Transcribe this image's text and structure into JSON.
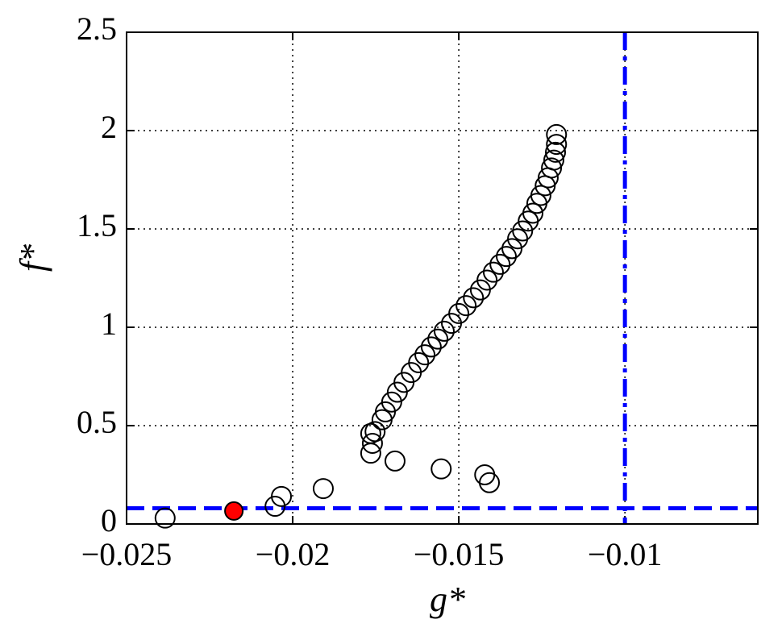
{
  "chart_data": {
    "type": "scatter",
    "x_label": "g*",
    "y_label": "f*",
    "xlim": [
      -0.025,
      -0.006
    ],
    "ylim": [
      0,
      2.5
    ],
    "xticks": [
      {
        "value": -0.025,
        "label": "−0.025"
      },
      {
        "value": -0.02,
        "label": "−0.02"
      },
      {
        "value": -0.015,
        "label": "−0.015"
      },
      {
        "value": -0.01,
        "label": "−0.01"
      }
    ],
    "yticks": [
      0,
      0.5,
      1,
      1.5,
      2,
      2.5
    ],
    "grid": true,
    "reference_lines": {
      "x": -0.01,
      "y": 0.08,
      "color": "#0000ff"
    },
    "series": [
      {
        "color": "#000000",
        "filled": false,
        "x": [
          -0.02384,
          -0.02053,
          -0.02034,
          -0.01908,
          -0.01765,
          -0.0176,
          -0.01765,
          -0.01692,
          -0.01553,
          -0.01422,
          -0.01408,
          -0.01752,
          -0.01731,
          -0.01721,
          -0.01702,
          -0.01685,
          -0.01665,
          -0.01643,
          -0.01621,
          -0.01602,
          -0.01583,
          -0.01563,
          -0.01544,
          -0.01522,
          -0.015,
          -0.01478,
          -0.01456,
          -0.01435,
          -0.01415,
          -0.01396,
          -0.01376,
          -0.01357,
          -0.0134,
          -0.01323,
          -0.01308,
          -0.01291,
          -0.01277,
          -0.01265,
          -0.01253,
          -0.0124,
          -0.01231,
          -0.01221,
          -0.01214,
          -0.01209,
          -0.01206,
          -0.01206
        ],
        "values": [
          0.03,
          0.09,
          0.14,
          0.18,
          0.36,
          0.41,
          0.46,
          0.32,
          0.28,
          0.25,
          0.21,
          0.47,
          0.53,
          0.57,
          0.62,
          0.67,
          0.72,
          0.77,
          0.82,
          0.86,
          0.9,
          0.94,
          0.98,
          1.02,
          1.07,
          1.11,
          1.15,
          1.19,
          1.24,
          1.28,
          1.32,
          1.36,
          1.4,
          1.45,
          1.49,
          1.54,
          1.58,
          1.63,
          1.67,
          1.72,
          1.76,
          1.81,
          1.85,
          1.89,
          1.93,
          1.98
        ]
      },
      {
        "color": "#ff0000",
        "filled": true,
        "x": [
          -0.02177
        ],
        "values": [
          0.066
        ]
      }
    ]
  }
}
